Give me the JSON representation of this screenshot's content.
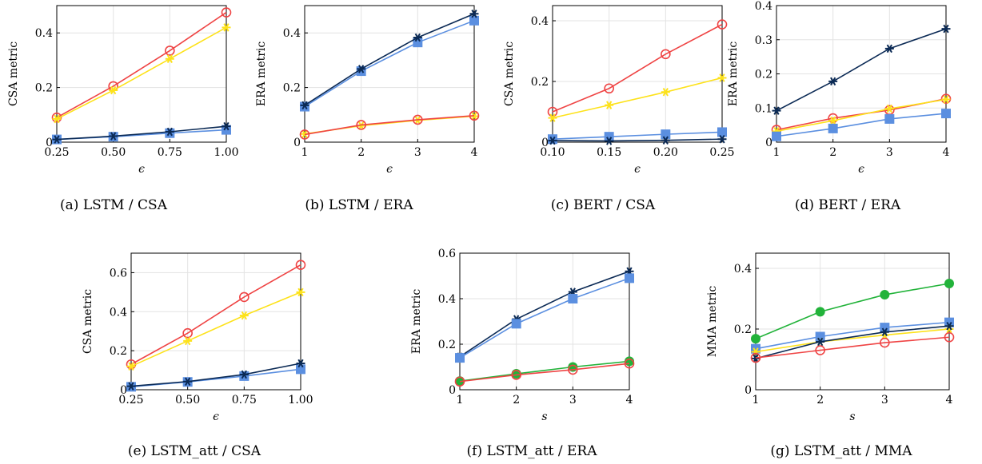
{
  "chart_data": [
    {
      "type": "line",
      "caption": "(a) LSTM / CSA",
      "xlabel": "ϵ",
      "ylabel": "CSA metric",
      "xlim": [
        0.25,
        1.0
      ],
      "ylim": [
        0,
        0.5
      ],
      "xticks": [
        0.25,
        0.5,
        0.75,
        1.0
      ],
      "xtick_labels": [
        "0.25",
        "0.50",
        "0.75",
        "1.00"
      ],
      "yticks": [
        0,
        0.2,
        0.4
      ],
      "ytick_labels": [
        "0",
        "0.2",
        "0.4"
      ],
      "grid": true,
      "series": [
        {
          "color": "#ef4444",
          "marker": "circle-open",
          "x": [
            0.25,
            0.5,
            0.75,
            1.0
          ],
          "y": [
            0.09,
            0.205,
            0.335,
            0.475
          ]
        },
        {
          "color": "#fde21a",
          "marker": "star",
          "x": [
            0.25,
            0.5,
            0.75,
            1.0
          ],
          "y": [
            0.085,
            0.19,
            0.305,
            0.42
          ]
        },
        {
          "color": "#5b8fe0",
          "marker": "square",
          "x": [
            0.25,
            0.5,
            0.75,
            1.0
          ],
          "y": [
            0.01,
            0.02,
            0.033,
            0.045
          ]
        },
        {
          "color": "#0b2a55",
          "marker": "star",
          "x": [
            0.25,
            0.5,
            0.75,
            1.0
          ],
          "y": [
            0.01,
            0.022,
            0.038,
            0.058
          ]
        }
      ]
    },
    {
      "type": "line",
      "caption": "(b) LSTM / ERA",
      "xlabel": "ϵ",
      "ylabel": "ERA metric",
      "xlim": [
        1,
        4
      ],
      "ylim": [
        0,
        0.5
      ],
      "xticks": [
        1,
        2,
        3,
        4
      ],
      "xtick_labels": [
        "1",
        "2",
        "3",
        "4"
      ],
      "yticks": [
        0,
        0.2,
        0.4
      ],
      "ytick_labels": [
        "0",
        "0.2",
        "0.4"
      ],
      "grid": true,
      "series": [
        {
          "color": "#5b8fe0",
          "marker": "square",
          "x": [
            1,
            2,
            3,
            4
          ],
          "y": [
            0.13,
            0.26,
            0.365,
            0.445
          ]
        },
        {
          "color": "#0b2a55",
          "marker": "star",
          "x": [
            1,
            2,
            3,
            4
          ],
          "y": [
            0.135,
            0.268,
            0.383,
            0.47
          ]
        },
        {
          "color": "#fde21a",
          "marker": "star",
          "x": [
            1,
            2,
            3,
            4
          ],
          "y": [
            0.03,
            0.06,
            0.08,
            0.095
          ]
        },
        {
          "color": "#ef4444",
          "marker": "circle-open",
          "x": [
            1,
            2,
            3,
            4
          ],
          "y": [
            0.028,
            0.063,
            0.082,
            0.097
          ]
        }
      ]
    },
    {
      "type": "line",
      "caption": "(c) BERT / CSA",
      "xlabel": "ϵ",
      "ylabel": "CSA metric",
      "xlim": [
        0.1,
        0.25
      ],
      "ylim": [
        0,
        0.45
      ],
      "xticks": [
        0.1,
        0.15,
        0.2,
        0.25
      ],
      "xtick_labels": [
        "0.10",
        "0.15",
        "0.20",
        "0.25"
      ],
      "yticks": [
        0,
        0.2,
        0.4
      ],
      "ytick_labels": [
        "0",
        "0.2",
        "0.4"
      ],
      "grid": true,
      "series": [
        {
          "color": "#ef4444",
          "marker": "circle-open",
          "x": [
            0.1,
            0.15,
            0.2,
            0.25
          ],
          "y": [
            0.1,
            0.177,
            0.29,
            0.388
          ]
        },
        {
          "color": "#fde21a",
          "marker": "star",
          "x": [
            0.1,
            0.15,
            0.2,
            0.25
          ],
          "y": [
            0.08,
            0.122,
            0.165,
            0.212
          ]
        },
        {
          "color": "#5b8fe0",
          "marker": "square",
          "x": [
            0.1,
            0.15,
            0.2,
            0.25
          ],
          "y": [
            0.01,
            0.018,
            0.026,
            0.033
          ]
        },
        {
          "color": "#0b2a55",
          "marker": "star",
          "x": [
            0.1,
            0.15,
            0.2,
            0.25
          ],
          "y": [
            0.005,
            0.004,
            0.006,
            0.01
          ]
        }
      ]
    },
    {
      "type": "line",
      "caption": "(d) BERT / ERA",
      "xlabel": "ϵ",
      "ylabel": "ERA metric",
      "xlim": [
        1,
        4
      ],
      "ylim": [
        0,
        0.4
      ],
      "xticks": [
        1,
        2,
        3,
        4
      ],
      "xtick_labels": [
        "1",
        "2",
        "3",
        "4"
      ],
      "yticks": [
        0,
        0.1,
        0.2,
        0.3,
        0.4
      ],
      "ytick_labels": [
        "0",
        "0.1",
        "0.2",
        "0.3",
        "0.4"
      ],
      "grid": true,
      "series": [
        {
          "color": "#0b2a55",
          "marker": "star",
          "x": [
            1,
            2,
            3,
            4
          ],
          "y": [
            0.092,
            0.178,
            0.274,
            0.332
          ]
        },
        {
          "color": "#ef4444",
          "marker": "circle-open",
          "x": [
            1,
            2,
            3,
            4
          ],
          "y": [
            0.036,
            0.07,
            0.094,
            0.127
          ]
        },
        {
          "color": "#fde21a",
          "marker": "star",
          "x": [
            1,
            2,
            3,
            4
          ],
          "y": [
            0.032,
            0.063,
            0.098,
            0.125
          ]
        },
        {
          "color": "#5b8fe0",
          "marker": "square",
          "x": [
            1,
            2,
            3,
            4
          ],
          "y": [
            0.017,
            0.04,
            0.068,
            0.084
          ]
        }
      ]
    },
    {
      "type": "line",
      "caption": "(e) LSTM_att / CSA",
      "xlabel": "ϵ",
      "ylabel": "CSA metric",
      "xlim": [
        0.25,
        1.0
      ],
      "ylim": [
        0,
        0.7
      ],
      "xticks": [
        0.25,
        0.5,
        0.75,
        1.0
      ],
      "xtick_labels": [
        "0.25",
        "0.50",
        "0.75",
        "1.00"
      ],
      "yticks": [
        0,
        0.2,
        0.4,
        0.6
      ],
      "ytick_labels": [
        "0",
        "0.2",
        "0.4",
        "0.6"
      ],
      "grid": true,
      "series": [
        {
          "color": "#ef4444",
          "marker": "circle-open",
          "x": [
            0.25,
            0.5,
            0.75,
            1.0
          ],
          "y": [
            0.13,
            0.29,
            0.475,
            0.64
          ]
        },
        {
          "color": "#fde21a",
          "marker": "star",
          "x": [
            0.25,
            0.5,
            0.75,
            1.0
          ],
          "y": [
            0.12,
            0.25,
            0.38,
            0.5
          ]
        },
        {
          "color": "#5b8fe0",
          "marker": "square",
          "x": [
            0.25,
            0.5,
            0.75,
            1.0
          ],
          "y": [
            0.015,
            0.04,
            0.07,
            0.105
          ]
        },
        {
          "color": "#0b2a55",
          "marker": "star",
          "x": [
            0.25,
            0.5,
            0.75,
            1.0
          ],
          "y": [
            0.018,
            0.042,
            0.078,
            0.135
          ]
        }
      ]
    },
    {
      "type": "line",
      "caption": "(f) LSTM_att / ERA",
      "xlabel": "s",
      "ylabel": "ERA metric",
      "xlim": [
        1,
        4
      ],
      "ylim": [
        0,
        0.6
      ],
      "xticks": [
        1,
        2,
        3,
        4
      ],
      "xtick_labels": [
        "1",
        "2",
        "3",
        "4"
      ],
      "yticks": [
        0,
        0.2,
        0.4,
        0.6
      ],
      "ytick_labels": [
        "0",
        "0.2",
        "0.4",
        "0.6"
      ],
      "grid": true,
      "series": [
        {
          "color": "#0b2a55",
          "marker": "star",
          "x": [
            1,
            2,
            3,
            4
          ],
          "y": [
            0.145,
            0.31,
            0.43,
            0.52
          ]
        },
        {
          "color": "#5b8fe0",
          "marker": "square",
          "x": [
            1,
            2,
            3,
            4
          ],
          "y": [
            0.14,
            0.29,
            0.4,
            0.49
          ]
        },
        {
          "color": "#22b33a",
          "marker": "circle-filled",
          "x": [
            1,
            2,
            3,
            4
          ],
          "y": [
            0.038,
            0.07,
            0.1,
            0.125
          ]
        },
        {
          "color": "#ef4444",
          "marker": "circle-open",
          "x": [
            1,
            2,
            3,
            4
          ],
          "y": [
            0.036,
            0.065,
            0.088,
            0.115
          ]
        }
      ]
    },
    {
      "type": "line",
      "caption": "(g) LSTM_att / MMA",
      "xlabel": "s",
      "ylabel": "MMA metric",
      "xlim": [
        1,
        4
      ],
      "ylim": [
        0,
        0.45
      ],
      "xticks": [
        1,
        2,
        3,
        4
      ],
      "xtick_labels": [
        "1",
        "2",
        "3",
        "4"
      ],
      "yticks": [
        0,
        0.2,
        0.4
      ],
      "ytick_labels": [
        "0",
        "0.2",
        "0.4"
      ],
      "grid": true,
      "series": [
        {
          "color": "#22b33a",
          "marker": "circle-filled",
          "x": [
            1,
            2,
            3,
            4
          ],
          "y": [
            0.168,
            0.257,
            0.313,
            0.35
          ]
        },
        {
          "color": "#5b8fe0",
          "marker": "square",
          "x": [
            1,
            2,
            3,
            4
          ],
          "y": [
            0.135,
            0.175,
            0.205,
            0.222
          ]
        },
        {
          "color": "#fde21a",
          "marker": "star",
          "x": [
            1,
            2,
            3,
            4
          ],
          "y": [
            0.125,
            0.158,
            0.18,
            0.2
          ]
        },
        {
          "color": "#0b2a55",
          "marker": "star",
          "x": [
            1,
            2,
            3,
            4
          ],
          "y": [
            0.103,
            0.158,
            0.19,
            0.21
          ]
        },
        {
          "color": "#ef4444",
          "marker": "circle-open",
          "x": [
            1,
            2,
            3,
            4
          ],
          "y": [
            0.105,
            0.13,
            0.155,
            0.173
          ]
        }
      ]
    }
  ]
}
